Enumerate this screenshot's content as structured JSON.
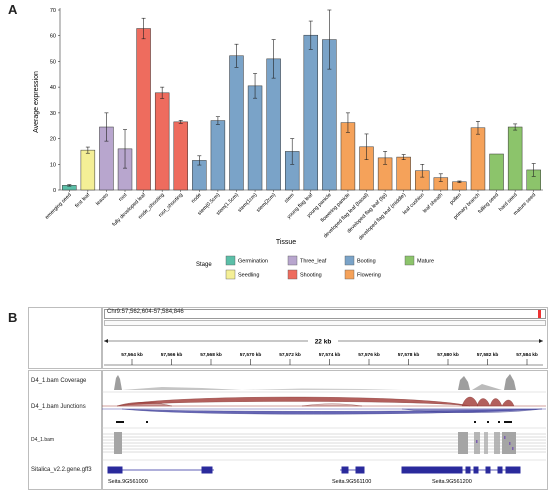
{
  "panel_a": {
    "letter": "A",
    "chart_data": {
      "type": "bar",
      "ylabel": "Average expression",
      "xlabel": "Tissue",
      "ylim": [
        0,
        70
      ],
      "yticks": [
        0,
        10,
        20,
        30,
        40,
        50,
        60,
        70
      ],
      "grid": false,
      "legend_title": "Stage",
      "legend_placement": "bottom",
      "stages": [
        {
          "name": "Germination",
          "color": "#5BBFA8"
        },
        {
          "name": "Three_leaf",
          "color": "#B8A6CE"
        },
        {
          "name": "Booting",
          "color": "#7AA3C8"
        },
        {
          "name": "Mature",
          "color": "#8CC46B"
        },
        {
          "name": "Seedling",
          "color": "#F4EF96"
        },
        {
          "name": "Shooting",
          "color": "#EE6C5E"
        },
        {
          "name": "Flowering",
          "color": "#F5A25A"
        }
      ],
      "categories": [
        "emerging seed",
        "first leaf",
        "leaves",
        "root",
        "fully developed leaf",
        "node_shooting",
        "root_shooting",
        "node",
        "stem(0.5cm)",
        "stem(1.5cm)",
        "stem(1cm)",
        "stem(2cm)",
        "stem",
        "young flag leaf",
        "young panicle",
        "flowering panicle",
        "developed flag leaf (basal)",
        "developed flag leaf (tip)",
        "developed flag leaf (middle)",
        "leaf cushion",
        "leaf sheath",
        "pollen",
        "primary branch",
        "fulling seed",
        "hard seed",
        "mature seed"
      ],
      "stage_of_category": [
        "Germination",
        "Seedling",
        "Three_leaf",
        "Three_leaf",
        "Shooting",
        "Shooting",
        "Shooting",
        "Booting",
        "Booting",
        "Booting",
        "Booting",
        "Booting",
        "Booting",
        "Booting",
        "Booting",
        "Flowering",
        "Flowering",
        "Flowering",
        "Flowering",
        "Flowering",
        "Flowering",
        "Flowering",
        "Flowering",
        "Mature",
        "Mature",
        "Mature"
      ],
      "values": [
        1.8,
        15.5,
        24.5,
        16,
        62.8,
        37.8,
        26.5,
        11.5,
        27,
        52.2,
        40.5,
        51,
        15,
        60.2,
        58.5,
        26.2,
        16.8,
        12.5,
        12.8,
        7.5,
        4.8,
        3.2,
        24.2,
        14,
        24.5,
        7.8
      ],
      "errors": [
        0.3,
        1.2,
        5.5,
        7.5,
        4,
        2.2,
        0.6,
        1.8,
        1.5,
        4.5,
        4.8,
        7.5,
        5,
        5.5,
        11.5,
        3.8,
        5,
        2.5,
        1,
        2.5,
        1.5,
        0.3,
        2.5,
        0,
        1.2,
        2.5
      ]
    }
  },
  "panel_b": {
    "letter": "B",
    "locus": "Chr9:57,562,604-57,584,846",
    "span_label": "22 kb",
    "ruler_ticks": [
      "57,564 kb",
      "57,566 kb",
      "57,568 kb",
      "57,570 kb",
      "57,572 kb",
      "57,574 kb",
      "57,576 kb",
      "57,578 kb",
      "57,580 kb",
      "57,582 kb",
      "57,584 kb"
    ],
    "tracks": {
      "coverage": "D4_1.bam Coverage",
      "junctions": "D4_1.bam Junctions",
      "alignments": "D4_1.bam",
      "genes": "Sitalica_v2.2.gene.gff3"
    },
    "genes": [
      "Seita.9G561000",
      "Seita.9G561100",
      "Seita.9G561200"
    ],
    "colors": {
      "junction_fwd": "#A4433F",
      "junction_rev": "#4B4BA8",
      "gene": "#2A2A9C",
      "coverage": "#9E9E9E"
    }
  }
}
